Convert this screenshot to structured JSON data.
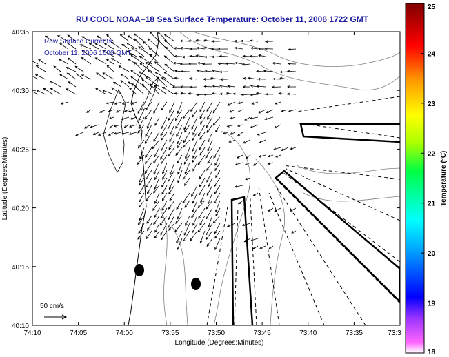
{
  "title": "RU COOL  NOAA−18  Sea Surface Temperature:  October 11, 2006 1722 GMT",
  "overlay": {
    "line1": "Raw Surface Currents",
    "line2": "October 11, 2006 1600 GMT"
  },
  "scale": {
    "label": "50 cm/s"
  },
  "axes": {
    "xlabel": "Longitude (Degrees:Minutes)",
    "ylabel": "Latitude (Degrees:Minutes)",
    "xticks": [
      "74:10",
      "74:05",
      "74:00",
      "73:55",
      "73:50",
      "73:45",
      "73:40",
      "73:35",
      "73:3"
    ],
    "yticks": [
      "40:35",
      "40:30",
      "40:25",
      "40:20",
      "40:15",
      "40:10"
    ]
  },
  "colorbar": {
    "label": "Temperature (°C)",
    "ticks": [
      "25",
      "24",
      "23",
      "22",
      "21",
      "20",
      "19",
      "18"
    ],
    "min": 18,
    "max": 25,
    "colors": [
      "#ff33ff",
      "#0000ff",
      "#00ffff",
      "#00ff00",
      "#ffff00",
      "#ff8000",
      "#ff0000",
      "#800000"
    ]
  }
}
